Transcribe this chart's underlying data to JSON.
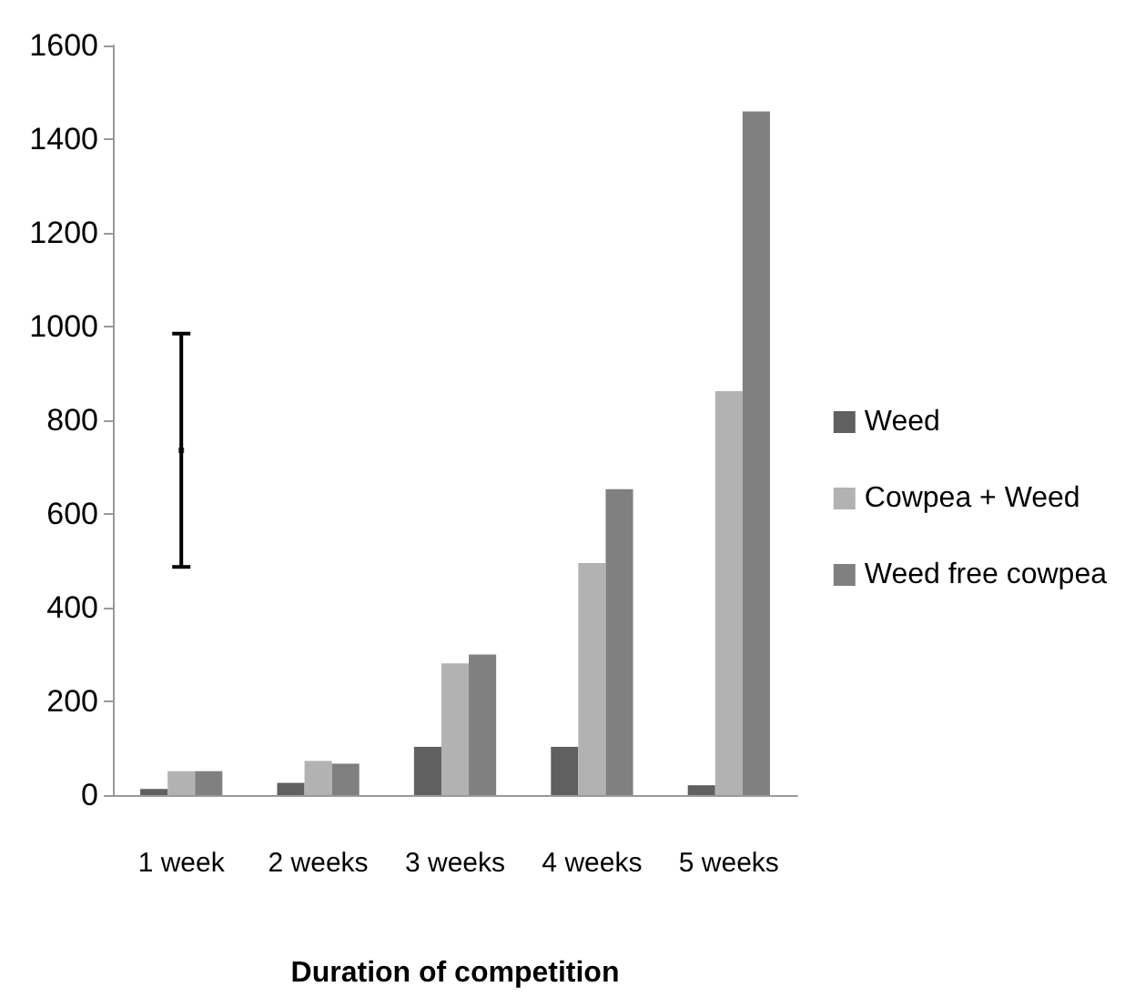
{
  "chart_data": {
    "type": "bar",
    "xlabel": "Duration of competition",
    "categories": [
      "1 week",
      "2 weeks",
      "3 weeks",
      "4 weeks",
      "5 weeks"
    ],
    "series": [
      {
        "name": "Weed",
        "color": "#606060",
        "values": [
          13,
          26,
          103,
          103,
          21
        ]
      },
      {
        "name": "Cowpea + Weed",
        "color": "#b2b2b2",
        "values": [
          51,
          73,
          281,
          495,
          862
        ]
      },
      {
        "name": "Weed free cowpea",
        "color": "#808080",
        "values": [
          51,
          67,
          300,
          653,
          1459
        ]
      },
      {
        "type": "scatter",
        "color": "#000000",
        "marker": "square",
        "x": [
          "1 week"
        ],
        "values": [
          736
        ],
        "errors": [
          [
            487,
            985
          ]
        ]
      }
    ],
    "ylim": [
      0,
      1600
    ],
    "yticks": [
      0,
      200,
      400,
      600,
      800,
      1000,
      1200,
      1400,
      1600
    ],
    "grid": false,
    "legend": "right"
  }
}
